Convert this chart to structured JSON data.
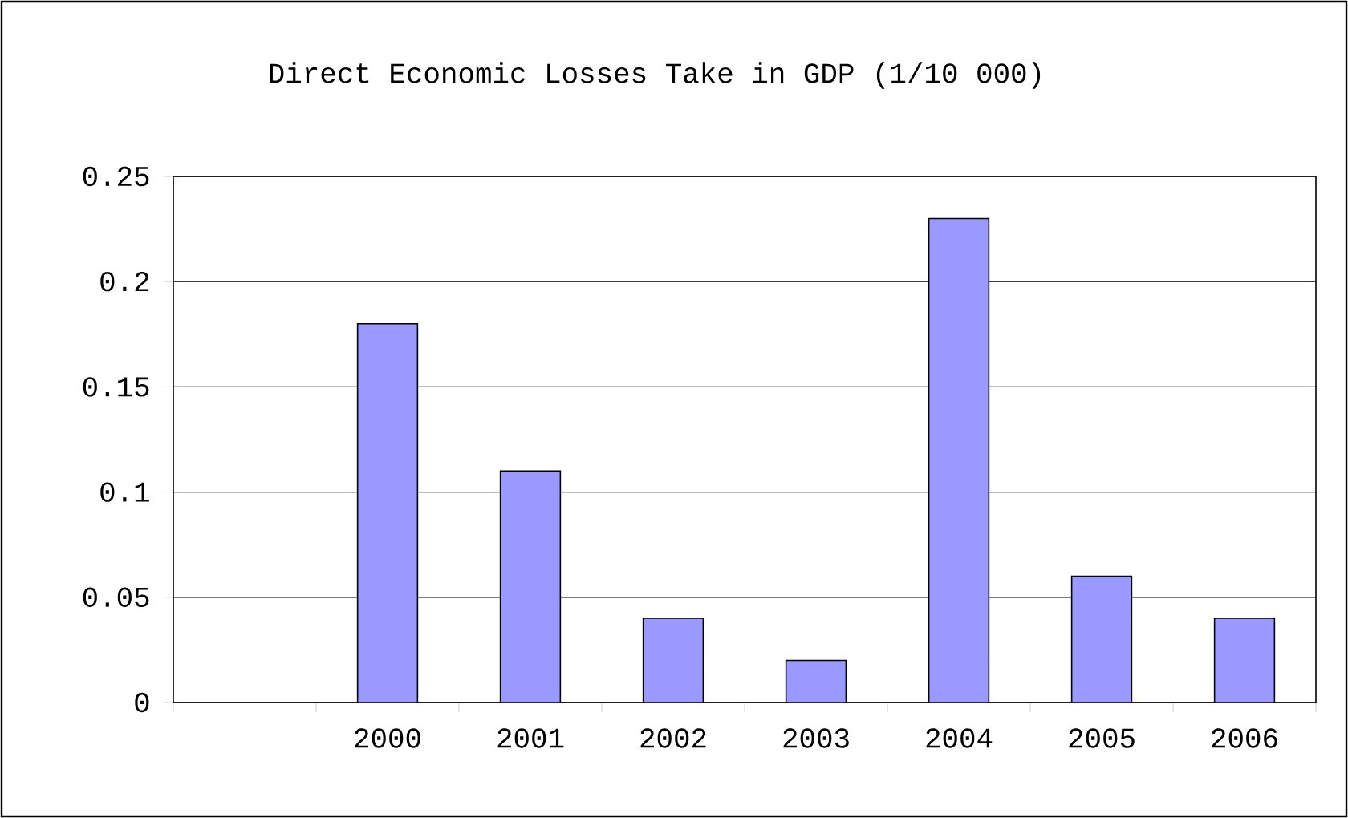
{
  "chart_data": {
    "type": "bar",
    "title": "Direct Economic Losses Take in GDP (1/10 000)",
    "categories": [
      null,
      "2000",
      "2001",
      "2002",
      "2003",
      "2004",
      "2005",
      "2006"
    ],
    "values": [
      null,
      0.18,
      0.11,
      0.04,
      0.02,
      0.23,
      0.06,
      0.04
    ],
    "color": "#9999ff",
    "ylim": [
      0,
      0.25
    ],
    "yticks": [
      0,
      0.05,
      0.1,
      0.15,
      0.2,
      0.25
    ],
    "grid": "y"
  }
}
